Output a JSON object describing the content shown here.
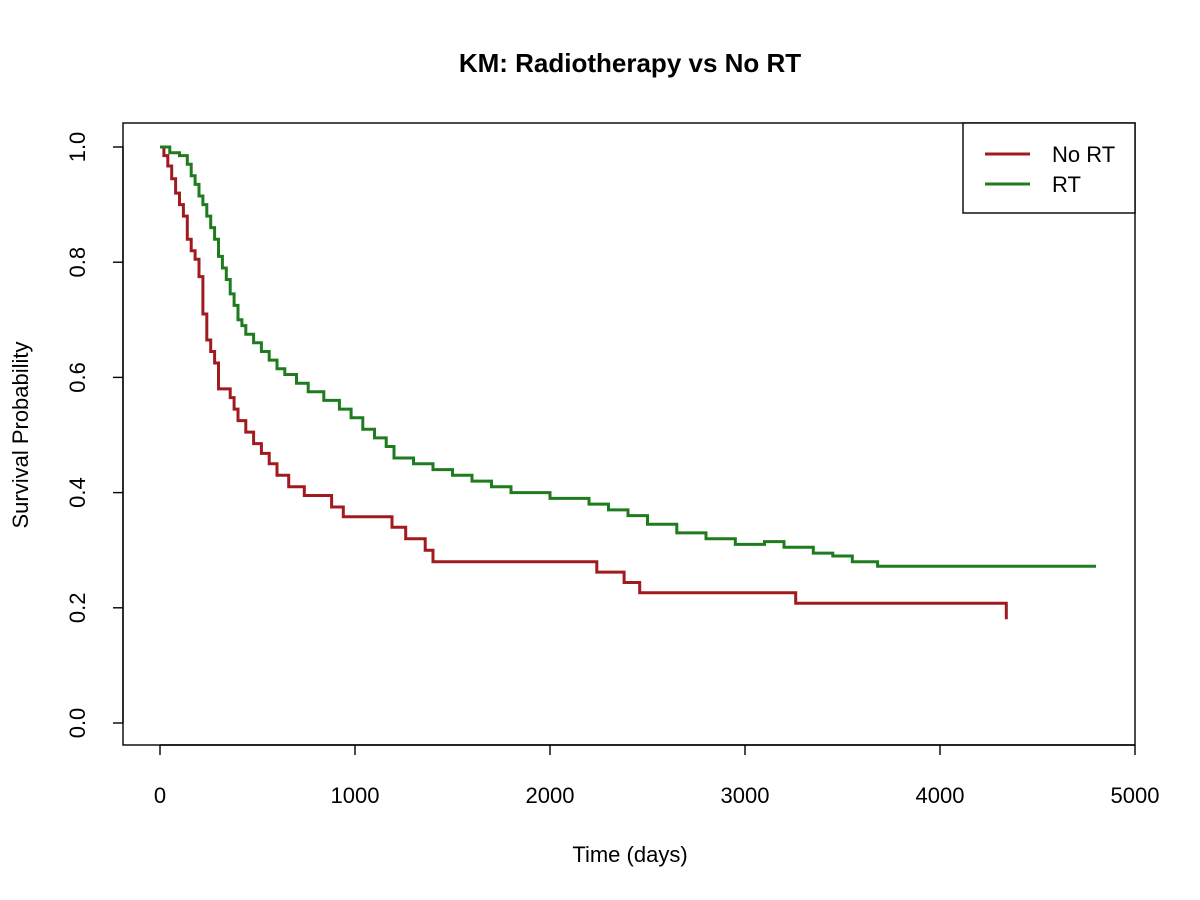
{
  "chart_data": {
    "type": "line",
    "step": true,
    "title": "KM: Radiotherapy vs No RT",
    "xlabel": "Time (days)",
    "ylabel": "Survival Probability",
    "xlim": [
      0,
      5000
    ],
    "ylim": [
      0,
      1
    ],
    "xticks": [
      "0",
      "1000",
      "2000",
      "3000",
      "4000",
      "5000"
    ],
    "yticks": [
      "0.0",
      "0.2",
      "0.4",
      "0.6",
      "0.8",
      "1.0"
    ],
    "legend_position": "top-right",
    "grid": false,
    "series": [
      {
        "name": "No RT",
        "color": "#A01A1F",
        "x": [
          0,
          20,
          40,
          60,
          80,
          100,
          120,
          140,
          160,
          180,
          200,
          220,
          240,
          260,
          280,
          300,
          360,
          380,
          400,
          440,
          480,
          520,
          560,
          600,
          660,
          740,
          880,
          940,
          1190,
          1260,
          1360,
          1400,
          2240,
          2380,
          2460,
          3260,
          4340
        ],
        "y": [
          1.0,
          0.985,
          0.967,
          0.945,
          0.92,
          0.9,
          0.88,
          0.84,
          0.82,
          0.805,
          0.775,
          0.71,
          0.665,
          0.645,
          0.625,
          0.58,
          0.565,
          0.545,
          0.525,
          0.505,
          0.485,
          0.468,
          0.45,
          0.43,
          0.41,
          0.395,
          0.375,
          0.358,
          0.34,
          0.32,
          0.3,
          0.28,
          0.262,
          0.244,
          0.226,
          0.208,
          0.18
        ]
      },
      {
        "name": "RT",
        "color": "#1E7B1E",
        "x": [
          0,
          50,
          100,
          140,
          160,
          180,
          200,
          220,
          240,
          260,
          280,
          300,
          320,
          340,
          360,
          380,
          400,
          420,
          440,
          480,
          520,
          560,
          600,
          640,
          700,
          760,
          840,
          920,
          980,
          1040,
          1100,
          1160,
          1200,
          1300,
          1400,
          1500,
          1600,
          1700,
          1800,
          2000,
          2200,
          2300,
          2400,
          2500,
          2650,
          2800,
          2950,
          3100,
          3200,
          3350,
          3450,
          3550,
          3680,
          4800
        ],
        "y": [
          1.0,
          0.99,
          0.985,
          0.97,
          0.95,
          0.935,
          0.915,
          0.9,
          0.88,
          0.86,
          0.84,
          0.81,
          0.79,
          0.77,
          0.745,
          0.725,
          0.7,
          0.69,
          0.675,
          0.66,
          0.645,
          0.63,
          0.615,
          0.605,
          0.59,
          0.575,
          0.56,
          0.545,
          0.53,
          0.51,
          0.495,
          0.48,
          0.46,
          0.45,
          0.44,
          0.43,
          0.42,
          0.41,
          0.4,
          0.39,
          0.38,
          0.37,
          0.36,
          0.345,
          0.33,
          0.32,
          0.31,
          0.315,
          0.305,
          0.295,
          0.29,
          0.28,
          0.272,
          0.272
        ]
      }
    ]
  }
}
